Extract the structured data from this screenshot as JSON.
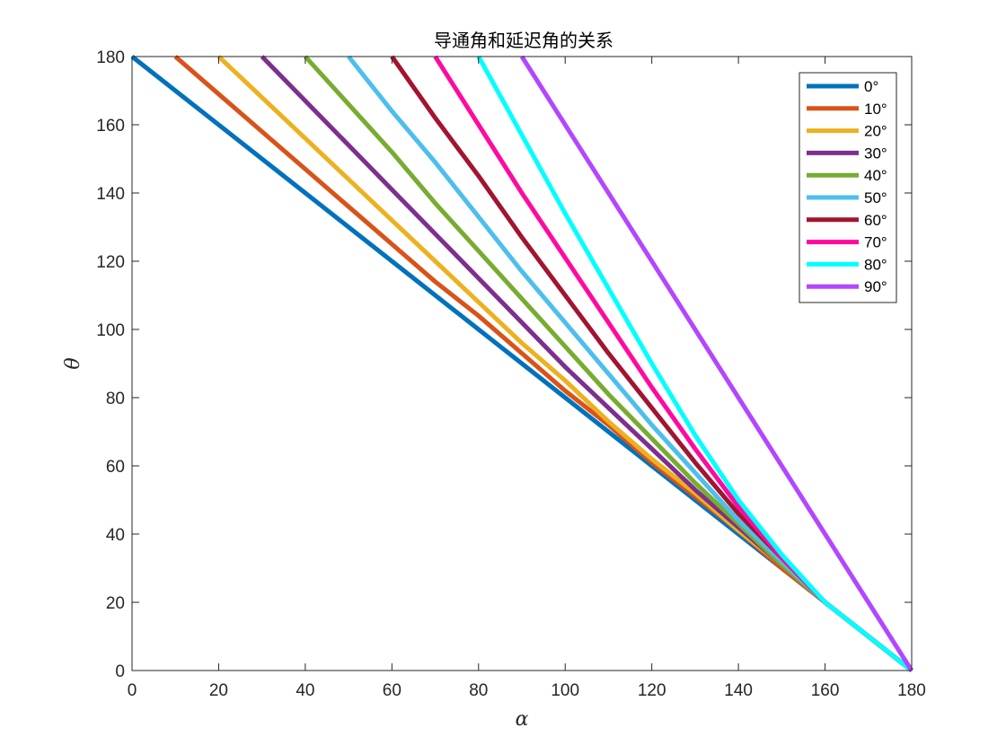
{
  "chart_data": {
    "type": "line",
    "title": "导通角和延迟角的关系",
    "xlabel": "α",
    "ylabel": "θ",
    "xlim": [
      0,
      180
    ],
    "ylim": [
      0,
      180
    ],
    "xticks": [
      0,
      20,
      40,
      60,
      80,
      100,
      120,
      140,
      160,
      180
    ],
    "yticks": [
      0,
      20,
      40,
      60,
      80,
      100,
      120,
      140,
      160,
      180
    ],
    "grid": false,
    "legend_position": "top-right",
    "x": [
      0,
      10,
      20,
      30,
      40,
      50,
      60,
      70,
      80,
      90,
      100,
      110,
      120,
      130,
      140,
      150,
      160,
      170,
      180
    ],
    "series": [
      {
        "name": "0°",
        "color": "#0072BD",
        "x": [
          0,
          10,
          20,
          30,
          40,
          50,
          60,
          70,
          80,
          90,
          100,
          110,
          120,
          130,
          140,
          150,
          160,
          170,
          180
        ],
        "values": [
          180,
          170,
          160,
          150,
          140,
          130,
          120,
          110,
          100,
          90,
          80,
          70,
          60,
          50,
          40,
          30,
          20,
          10,
          0
        ]
      },
      {
        "name": "10°",
        "color": "#D95319",
        "x": [
          10,
          20,
          30,
          40,
          50,
          60,
          70,
          80,
          90,
          100,
          110,
          120,
          130,
          140,
          150,
          160,
          170,
          180
        ],
        "values": [
          180,
          169,
          158,
          147,
          136,
          125,
          114,
          104,
          93,
          82,
          72,
          61,
          51,
          41,
          30,
          20,
          10,
          0
        ]
      },
      {
        "name": "20°",
        "color": "#EDB120",
        "x": [
          20,
          30,
          40,
          50,
          60,
          70,
          80,
          90,
          100,
          110,
          120,
          130,
          140,
          150,
          160,
          170,
          180
        ],
        "values": [
          180,
          168,
          156,
          144,
          132,
          120,
          108,
          96,
          85,
          73,
          62,
          52,
          41,
          31,
          20,
          10,
          0
        ]
      },
      {
        "name": "30°",
        "color": "#7E2F8E",
        "x": [
          30,
          40,
          50,
          60,
          70,
          80,
          90,
          100,
          110,
          120,
          130,
          140,
          150,
          160,
          170,
          180
        ],
        "values": [
          180,
          167,
          154,
          141,
          128,
          115,
          102,
          89,
          77,
          65,
          53,
          42,
          31,
          20,
          10,
          0
        ]
      },
      {
        "name": "40°",
        "color": "#77AC30",
        "x": [
          40,
          50,
          60,
          70,
          80,
          90,
          100,
          110,
          120,
          130,
          140,
          150,
          160,
          170,
          180
        ],
        "values": [
          180,
          166,
          152,
          137,
          123,
          109,
          95,
          81,
          68,
          55,
          43,
          31,
          20,
          10,
          0
        ]
      },
      {
        "name": "50°",
        "color": "#4DBEEE",
        "x": [
          50,
          60,
          70,
          80,
          90,
          100,
          110,
          120,
          130,
          140,
          150,
          160,
          170,
          180
        ],
        "values": [
          180,
          164,
          149,
          133,
          117,
          102,
          87,
          72,
          58,
          44,
          32,
          20,
          10,
          0
        ]
      },
      {
        "name": "60°",
        "color": "#A2142F",
        "x": [
          60,
          70,
          80,
          90,
          100,
          110,
          120,
          130,
          140,
          150,
          160,
          170,
          180
        ],
        "values": [
          180,
          162,
          145,
          127,
          110,
          93,
          77,
          61,
          46,
          33,
          20,
          10,
          0
        ]
      },
      {
        "name": "70°",
        "color": "#FF0AA0",
        "x": [
          70,
          80,
          90,
          100,
          110,
          120,
          130,
          140,
          150,
          160,
          170,
          180
        ],
        "values": [
          180,
          160,
          140,
          121,
          102,
          83,
          65,
          48,
          33,
          20,
          10,
          0
        ]
      },
      {
        "name": "80°",
        "color": "#00FFFF",
        "x": [
          80,
          90,
          100,
          110,
          120,
          130,
          140,
          150,
          160,
          170,
          180
        ],
        "values": [
          180,
          157,
          134,
          112,
          90,
          69,
          50,
          34,
          20,
          10,
          0
        ]
      },
      {
        "name": "90°",
        "color": "#B446FF",
        "x": [
          90,
          100,
          110,
          120,
          130,
          140,
          150,
          160,
          170,
          180
        ],
        "values": [
          180,
          160,
          140,
          120,
          100,
          80,
          60,
          40,
          20,
          0
        ]
      }
    ]
  }
}
